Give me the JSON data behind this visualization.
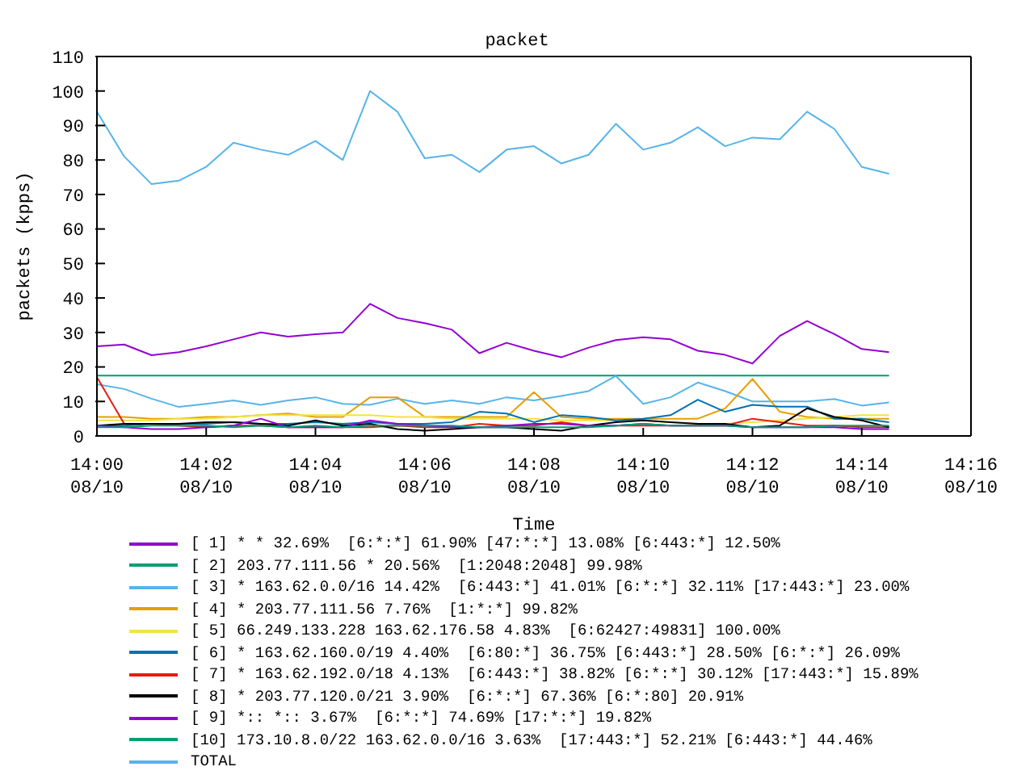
{
  "chart_data": {
    "type": "line",
    "title": "packet",
    "xlabel": "Time",
    "ylabel": "packets (kpps)",
    "x": [
      "--08-10T14:00:00",
      "--08-10T14:00:30",
      "--08-10T14:01:00",
      "--08-10T14:01:30",
      "--08-10T14:02:00",
      "--08-10T14:02:30",
      "--08-10T14:03:00",
      "--08-10T14:03:30",
      "--08-10T14:04:00",
      "--08-10T14:04:30",
      "--08-10T14:05:00",
      "--08-10T14:05:30",
      "--08-10T14:06:00",
      "--08-10T14:06:30",
      "--08-10T14:07:00",
      "--08-10T14:07:30",
      "--08-10T14:08:00",
      "--08-10T14:08:30",
      "--08-10T14:09:00",
      "--08-10T14:09:30",
      "--08-10T14:10:00",
      "--08-10T14:10:30",
      "--08-10T14:11:00",
      "--08-10T14:11:30",
      "--08-10T14:12:00",
      "--08-10T14:12:30",
      "--08-10T14:13:00",
      "--08-10T14:13:30",
      "--08-10T14:14:00",
      "--08-10T14:14:30"
    ],
    "series": [
      {
        "name": "[ 1] * * 32.69%  [6:*:*] 61.90% [47:*:*] 13.08% [6:443:*] 12.50%",
        "color": "#9400d3",
        "values": [
          26,
          26.5,
          23.4,
          24.3,
          26,
          28,
          30,
          28.8,
          29.5,
          30,
          38.3,
          34.2,
          32.7,
          30.8,
          24,
          27,
          24.7,
          22.8,
          25.6,
          27.8,
          28.6,
          28,
          24.7,
          23.5,
          21,
          29,
          33.3,
          29.5,
          25.2,
          24.3
        ]
      },
      {
        "name": "[ 2] 203.77.111.56 * 20.56%  [1:2048:2048] 99.98%",
        "color": "#009e73",
        "values": [
          17.5,
          17.5,
          17.5,
          17.5,
          17.5,
          17.5,
          17.5,
          17.5,
          17.5,
          17.5,
          17.5,
          17.5,
          17.5,
          17.5,
          17.5,
          17.5,
          17.5,
          17.5,
          17.5,
          17.5,
          17.5,
          17.5,
          17.5,
          17.5,
          17.5,
          17.5,
          17.5,
          17.5,
          17.5,
          17.5
        ]
      },
      {
        "name": "[ 3] * 163.62.0.0/16 14.42%  [6:443:*] 41.01% [6:*:*] 32.11% [17:443:*] 23.00%",
        "color": "#56b4e9",
        "values": [
          15,
          13.6,
          10.8,
          8.4,
          9.3,
          10.3,
          9,
          10.3,
          11.2,
          9.3,
          9,
          10.8,
          9.3,
          10.3,
          9.3,
          11.2,
          10.3,
          11.6,
          13,
          17.4,
          9.3,
          11.2,
          15.5,
          13,
          10,
          10,
          10,
          10.7,
          8.8,
          9.7
        ]
      },
      {
        "name": "[ 4] * 203.77.111.56 7.76%  [1:*:*] 99.82%",
        "color": "#e69f00",
        "values": [
          5.5,
          5.5,
          5,
          5,
          5.5,
          5.5,
          6,
          6.5,
          5.5,
          5.5,
          11.2,
          11.2,
          5.5,
          5.5,
          5.5,
          5.5,
          12.7,
          5.5,
          5,
          5,
          5,
          5,
          5,
          8,
          16.5,
          7,
          5.5,
          5,
          5,
          5
        ]
      },
      {
        "name": "[ 5] 66.249.133.228 163.62.176.58 4.83%  [6:62427:49831] 100.00%",
        "color": "#f0e442",
        "values": [
          4.5,
          4.5,
          4.5,
          5,
          5,
          5.5,
          6,
          6,
          6,
          6,
          6,
          5.5,
          5.5,
          5,
          5,
          5,
          5,
          4.5,
          4.5,
          4.5,
          4.5,
          4,
          3.5,
          3.5,
          4,
          4.5,
          5,
          5.5,
          6,
          6
        ]
      },
      {
        "name": "[ 6] * 163.62.160.0/19 4.40%  [6:80:*] 36.75% [6:443:*] 28.50% [6:*:*] 26.09%",
        "color": "#0072b2",
        "values": [
          3,
          3,
          3.5,
          3.5,
          3.5,
          4,
          3.5,
          3.5,
          4,
          3.5,
          4,
          3.5,
          3.5,
          4,
          7,
          6.5,
          4,
          6,
          5.5,
          4.5,
          5,
          6,
          10.5,
          7,
          9,
          8.5,
          8.5,
          5,
          5,
          4
        ]
      },
      {
        "name": "[ 7] * 163.62.192.0/18 4.13%  [6:443:*] 38.82% [6:*:*] 30.12% [17:443:*] 15.89%",
        "color": "#e51e10",
        "values": [
          17,
          3.5,
          3.5,
          3,
          2.5,
          3,
          3,
          2.5,
          2.5,
          2.5,
          2.5,
          3,
          2.5,
          2.5,
          3.5,
          3,
          3,
          4,
          3,
          3,
          3,
          3,
          3,
          3,
          5,
          4,
          3,
          3,
          2.5,
          2.5
        ]
      },
      {
        "name": "[ 8] * 203.77.120.0/21 3.90%  [6:*:*] 67.36% [6:*:80] 20.91%",
        "color": "#000000",
        "values": [
          3,
          3.5,
          3.5,
          3.5,
          4,
          4,
          3.5,
          3,
          4.5,
          3,
          3.5,
          2,
          1.5,
          2,
          2.5,
          2.5,
          2,
          1.5,
          3,
          4,
          4.5,
          4,
          3.5,
          3.5,
          2.5,
          3,
          8,
          5.5,
          4.5,
          2.5
        ]
      },
      {
        "name": "[ 9] *:: *:: 3.67%  [6:*:*] 74.69% [17:*:*] 19.82%",
        "color": "#9400d3",
        "values": [
          3,
          2.5,
          2,
          2,
          2.5,
          3,
          5,
          2.5,
          2.5,
          2.5,
          4.5,
          3.5,
          3,
          2.5,
          2.5,
          3,
          3.5,
          3.5,
          3,
          3,
          3.5,
          3,
          3,
          3,
          2.5,
          2.5,
          2.5,
          2.5,
          2,
          2
        ]
      },
      {
        "name": "[10] 173.10.8.0/22 163.62.0.0/16 3.63%  [17:443:*] 52.21% [6:443:*] 44.46%",
        "color": "#009e73",
        "values": [
          2.5,
          2.5,
          3,
          3,
          3,
          2.5,
          3,
          2.5,
          3,
          2.5,
          3,
          3,
          3,
          3,
          2.5,
          2.5,
          2.5,
          2.5,
          2.5,
          3,
          3.5,
          3,
          3,
          3,
          2.5,
          2.5,
          2.5,
          3,
          3,
          3
        ]
      },
      {
        "name": "TOTAL",
        "color": "#56b4e9",
        "values": [
          94,
          81,
          73,
          74,
          78,
          85,
          83,
          81.5,
          85.5,
          80,
          100,
          94,
          80.5,
          81.5,
          76.5,
          83,
          84,
          79,
          81.5,
          90.5,
          83,
          85,
          89.5,
          84,
          86.5,
          86,
          94,
          89,
          78,
          76
        ]
      }
    ],
    "xlim": [
      "--08-10T14:00",
      "--08-10T14:16"
    ],
    "xticks": [
      {
        "value": "--08-10T14:00",
        "label": "14:00\n08/10"
      },
      {
        "value": "--08-10T14:02",
        "label": "14:02\n08/10"
      },
      {
        "value": "--08-10T14:04",
        "label": "14:04\n08/10"
      },
      {
        "value": "--08-10T14:06",
        "label": "14:06\n08/10"
      },
      {
        "value": "--08-10T14:08",
        "label": "14:08\n08/10"
      },
      {
        "value": "--08-10T14:10",
        "label": "14:10\n08/10"
      },
      {
        "value": "--08-10T14:12",
        "label": "14:12\n08/10"
      },
      {
        "value": "--08-10T14:14",
        "label": "14:14\n08/10"
      },
      {
        "value": "--08-10T14:16",
        "label": "14:16\n08/10"
      }
    ],
    "ylim": [
      0,
      110
    ],
    "yticks": [
      0,
      10,
      20,
      30,
      40,
      50,
      60,
      70,
      80,
      90,
      100,
      110
    ],
    "legend": "bottom",
    "marker": "none",
    "line_style": "solid"
  }
}
